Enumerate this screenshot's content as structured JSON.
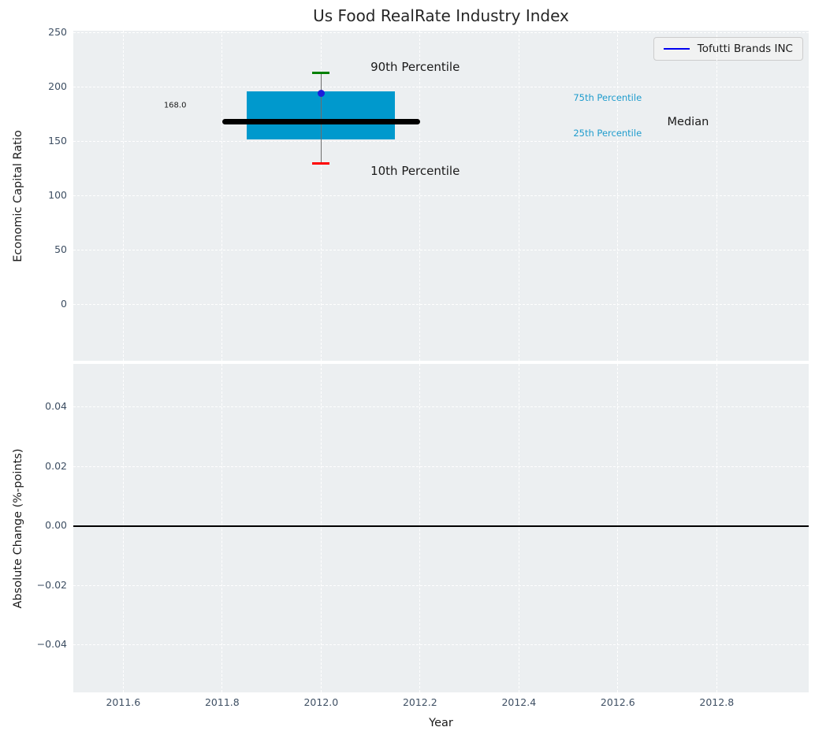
{
  "legend": {
    "label": "Tofutti Brands INC",
    "line_color": "#0000f0"
  },
  "colors": {
    "panel_bg": "#eceff1",
    "grid": "#ffffff",
    "tick_text": "#3e4f63",
    "box_fill": "#0099cd",
    "median_line": "#000000",
    "whisker": "#6e6e6e",
    "cap_90th": "#008000",
    "cap_10th": "#ff0000",
    "company_marker": "#1c1cdb",
    "percentile_label": "#1f9ccd",
    "annotation_text": "#1a1a1a"
  },
  "chart_data": {
    "type": "box",
    "title": "Us Food RealRate Industry Index",
    "x_axis": {
      "label": "Year",
      "xlim": [
        2011.499,
        2012.986
      ],
      "ticks": [
        2011.6,
        2011.8,
        2012.0,
        2012.2,
        2012.4,
        2012.6,
        2012.8
      ],
      "tick_labels": [
        "2011.6",
        "2011.8",
        "2012.0",
        "2012.2",
        "2012.4",
        "2012.6",
        "2012.8"
      ]
    },
    "top_axis": {
      "ylabel": "Economic Capital Ratio",
      "ylim": [
        -51.7,
        252.0
      ],
      "yticks": [
        250,
        200,
        150,
        100,
        50,
        0
      ],
      "ytick_labels": [
        "250",
        "200",
        "150",
        "100",
        "50",
        "0"
      ]
    },
    "bottom_axis": {
      "ylabel": "Absolute Change (%-points)",
      "ylim": [
        -0.0559,
        0.0546
      ],
      "yticks": [
        0.04,
        0.02,
        0.0,
        -0.02,
        -0.04
      ],
      "ytick_labels": [
        "0.04",
        "0.02",
        "0.00",
        "−0.02",
        "−0.04"
      ],
      "zero_line": 0.0
    },
    "boxes": [
      {
        "x_center": 2012.0,
        "p10": 130,
        "p25": 152,
        "median": 168.0,
        "p75": 196,
        "p90": 213,
        "box_x_span": [
          2011.85,
          2012.15
        ],
        "median_x_span": [
          2011.8,
          2012.2
        ],
        "median_label": "168.0"
      }
    ],
    "series": [
      {
        "name": "Tofutti Brands INC",
        "type": "scatter",
        "x": [
          2012.0
        ],
        "y": [
          194.5
        ]
      }
    ],
    "annotations": [
      {
        "text": "90th Percentile",
        "x": 2012.1,
        "y": 219,
        "size": 15,
        "color": "#1a1a1a"
      },
      {
        "text": "10th Percentile",
        "x": 2012.1,
        "y": 123,
        "size": 15,
        "color": "#1a1a1a"
      },
      {
        "text": "168.0",
        "x": 2011.682,
        "y": 183,
        "size": 10,
        "color": "#1a1a1a"
      },
      {
        "text": "75th Percentile",
        "x": 2012.51,
        "y": 190.4,
        "size": 11.5,
        "color": "#1f9ccd"
      },
      {
        "text": "25th Percentile",
        "x": 2012.51,
        "y": 157.8,
        "size": 11.5,
        "color": "#1f9ccd"
      },
      {
        "text": "Median",
        "x": 2012.7,
        "y": 168.2,
        "size": 14.5,
        "color": "#1a1a1a"
      }
    ],
    "grid": {
      "on": true,
      "style": "dashed",
      "color": "#ffffff"
    },
    "legend_position": "upper right"
  }
}
